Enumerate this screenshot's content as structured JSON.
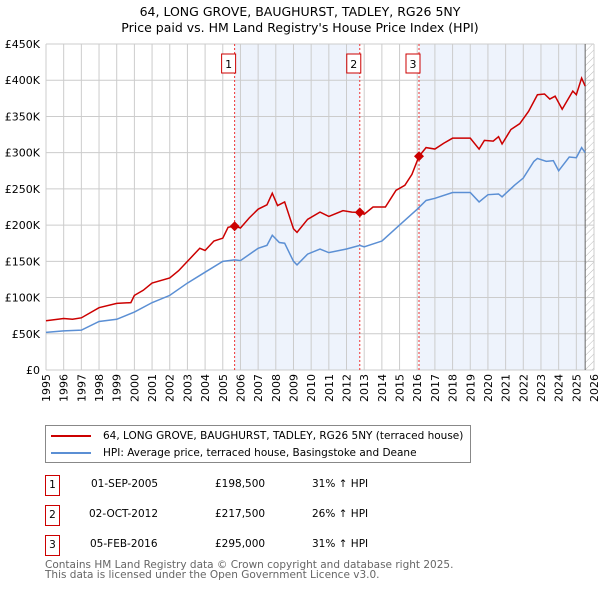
{
  "chart_data": {
    "type": "line",
    "title": "64, LONG GROVE, BAUGHURST, TADLEY, RG26 5NY",
    "subtitle": "Price paid vs. HM Land Registry's House Price Index (HPI)",
    "xlim": [
      1995,
      2026
    ],
    "ylim": [
      0,
      450000
    ],
    "y_ticks": [
      {
        "v": 0,
        "label": "£0"
      },
      {
        "v": 50000,
        "label": "£50K"
      },
      {
        "v": 100000,
        "label": "£100K"
      },
      {
        "v": 150000,
        "label": "£150K"
      },
      {
        "v": 200000,
        "label": "£200K"
      },
      {
        "v": 250000,
        "label": "£250K"
      },
      {
        "v": 300000,
        "label": "£300K"
      },
      {
        "v": 350000,
        "label": "£350K"
      },
      {
        "v": 400000,
        "label": "£400K"
      },
      {
        "v": 450000,
        "label": "£450K"
      }
    ],
    "x_ticks": [
      "1995",
      "1996",
      "1997",
      "1998",
      "1999",
      "2000",
      "2001",
      "2002",
      "2003",
      "2004",
      "2005",
      "2006",
      "2007",
      "2008",
      "2009",
      "2010",
      "2011",
      "2012",
      "2013",
      "2014",
      "2015",
      "2016",
      "2017",
      "2018",
      "2019",
      "2020",
      "2021",
      "2022",
      "2023",
      "2024",
      "2025",
      "2026"
    ],
    "grid": true,
    "series": [
      {
        "name": "64, LONG GROVE, BAUGHURST, TADLEY, RG26 5NY (terraced house)",
        "color": "#cc0000",
        "x": [
          1995,
          1996,
          1996.5,
          1997,
          1998,
          1999,
          1999.8,
          2000,
          2000.5,
          2001,
          2002,
          2002.5,
          2003,
          2003.7,
          2004,
          2004.5,
          2005,
          2005.3,
          2005.67,
          2006,
          2006.5,
          2007,
          2007.5,
          2007.8,
          2008.1,
          2008.5,
          2009,
          2009.2,
          2009.8,
          2010.5,
          2011,
          2011.8,
          2012.3,
          2012.75,
          2013,
          2013.5,
          2014.2,
          2014.8,
          2015.3,
          2015.7,
          2016.1,
          2016.5,
          2017,
          2017.5,
          2018,
          2019,
          2019.5,
          2019.8,
          2020.3,
          2020.6,
          2020.8,
          2021.3,
          2021.8,
          2022.3,
          2022.8,
          2023.2,
          2023.5,
          2023.8,
          2024.2,
          2024.8,
          2025,
          2025.3,
          2025.5
        ],
        "y": [
          68000,
          71000,
          70000,
          72000,
          86000,
          92000,
          93000,
          103000,
          110000,
          120000,
          127000,
          137000,
          150000,
          168000,
          165000,
          178000,
          182000,
          197000,
          198500,
          196000,
          210000,
          222000,
          228000,
          244000,
          227000,
          232000,
          195000,
          190000,
          208000,
          218000,
          212000,
          220000,
          218000,
          217500,
          215000,
          225000,
          225000,
          248000,
          255000,
          270000,
          295000,
          307000,
          305000,
          313000,
          320000,
          320000,
          305000,
          317000,
          316000,
          322000,
          312000,
          332000,
          340000,
          357000,
          380000,
          381000,
          374000,
          378000,
          360000,
          385000,
          380000,
          403000,
          392000
        ]
      },
      {
        "name": "HPI: Average price, terraced house, Basingstoke and Deane",
        "color": "#5b8fd4",
        "x": [
          1995,
          1996,
          1997,
          1998,
          1999,
          2000,
          2001,
          2002,
          2003,
          2004,
          2005,
          2005.67,
          2006,
          2007,
          2007.5,
          2007.8,
          2008.2,
          2008.5,
          2009,
          2009.2,
          2009.8,
          2010.5,
          2011,
          2012,
          2012.75,
          2013,
          2014,
          2015,
          2016,
          2016.5,
          2017,
          2018,
          2019,
          2019.5,
          2020,
          2020.6,
          2020.8,
          2021.5,
          2022,
          2022.6,
          2022.8,
          2023.3,
          2023.7,
          2024,
          2024.6,
          2025,
          2025.3,
          2025.5
        ],
        "y": [
          52000,
          54000,
          55000,
          67000,
          70000,
          80000,
          93000,
          103000,
          120000,
          135000,
          150000,
          152000,
          151000,
          168000,
          172000,
          186000,
          176000,
          175000,
          150000,
          145000,
          160000,
          167000,
          162000,
          167000,
          172000,
          170000,
          178000,
          200000,
          222000,
          234000,
          237000,
          245000,
          245000,
          232000,
          242000,
          243000,
          239000,
          255000,
          265000,
          288000,
          292000,
          288000,
          289000,
          275000,
          294000,
          293000,
          307000,
          300000
        ]
      }
    ],
    "sales": [
      {
        "n": "1",
        "x": 2005.67,
        "y": 198500,
        "date": "01-SEP-2005",
        "price": "£198,500",
        "hpi": "31% ↑ HPI"
      },
      {
        "n": "2",
        "x": 2012.75,
        "y": 217500,
        "date": "02-OCT-2012",
        "price": "£217,500",
        "hpi": "26% ↑ HPI"
      },
      {
        "n": "3",
        "x": 2016.1,
        "y": 295000,
        "date": "05-FEB-2016",
        "price": "£295,000",
        "hpi": "31% ↑ HPI"
      }
    ],
    "forecast_from": 2025.5
  },
  "legend": {
    "red": "64, LONG GROVE, BAUGHURST, TADLEY, RG26 5NY (terraced house)",
    "blue": "HPI: Average price, terraced house, Basingstoke and Deane"
  },
  "footer": {
    "line1": "Contains HM Land Registry data © Crown copyright and database right 2025.",
    "line2": "This data is licensed under the Open Government Licence v3.0."
  }
}
